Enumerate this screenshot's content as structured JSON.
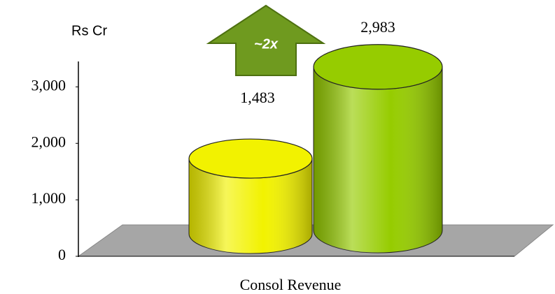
{
  "chart_data": {
    "type": "cylinder",
    "y_label": "Rs Cr",
    "x_label": "Consol Revenue",
    "annotation": "~2x",
    "categories": [
      null,
      null
    ],
    "values": [
      1483,
      2983
    ],
    "value_labels": [
      "1,483",
      "2,983"
    ],
    "colors": [
      "#f2f200",
      "#96cc00"
    ],
    "ylim": [
      0,
      3450
    ],
    "yticks": [
      0,
      {
        "value": 1000,
        "label": "1,000"
      },
      {
        "value": 2000,
        "label": "2,000"
      },
      {
        "value": 3000,
        "label": "3,000"
      }
    ],
    "grid": false
  }
}
